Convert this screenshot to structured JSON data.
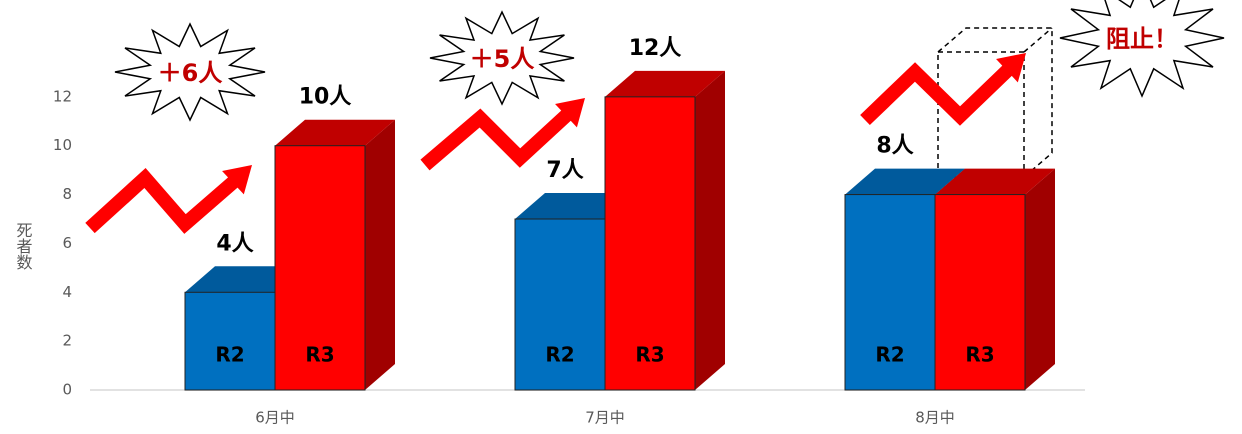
{
  "chart_data": {
    "type": "bar3d",
    "y_label": "死者数",
    "categories": [
      "6月中",
      "7月中",
      "8月中"
    ],
    "series": [
      {
        "name": "R2",
        "color": "#0070c0",
        "values": [
          4,
          7,
          8
        ],
        "value_labels": [
          "4人",
          "7人",
          "8人"
        ]
      },
      {
        "name": "R3",
        "color": "#ff0000",
        "values": [
          10,
          12,
          8
        ],
        "value_labels": [
          "10人",
          "12人",
          null
        ]
      }
    ],
    "ylim": [
      0,
      14
    ],
    "yticks": [
      0,
      2,
      4,
      6,
      8,
      10,
      12
    ],
    "grid": false,
    "annotations": [
      "＋6人",
      "＋5人",
      "阻止！"
    ]
  }
}
